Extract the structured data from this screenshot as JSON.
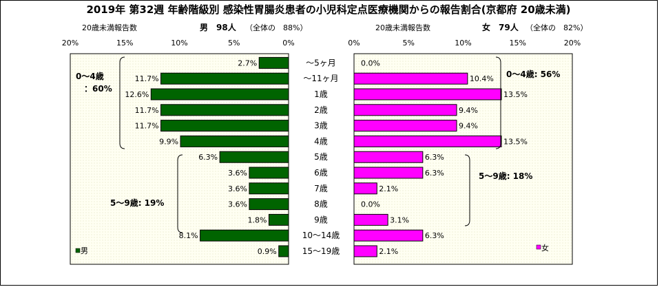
{
  "chart_data": {
    "type": "bar",
    "title": "2019年 第32週 年齢階級別 感染性胃腸炎患者の小児科定点医療機関からの報告割合(京都府 20歳未満)",
    "categories": [
      "～5ヶ月",
      "～11ヶ月",
      "1歳",
      "2歳",
      "3歳",
      "4歳",
      "5歳",
      "6歳",
      "7歳",
      "8歳",
      "9歳",
      "10～14歳",
      "15～19歳"
    ],
    "xlim": [
      0,
      20
    ],
    "ticks": [
      "20%",
      "15%",
      "10%",
      "5%",
      "0%"
    ],
    "ticks_right": [
      "0%",
      "5%",
      "10%",
      "15%",
      "20%"
    ],
    "left_panel": {
      "header_label": "20歳未満報告数",
      "header_count": "男　98人",
      "header_share": "（全体の　88%）",
      "legend": "男",
      "color": "#006400",
      "values": [
        2.7,
        11.7,
        12.6,
        11.7,
        11.7,
        9.9,
        6.3,
        3.6,
        3.6,
        3.6,
        1.8,
        8.1,
        0.9
      ],
      "labels": [
        "2.7%",
        "11.7%",
        "12.6%",
        "11.7%",
        "11.7%",
        "9.9%",
        "6.3%",
        "3.6%",
        "3.6%",
        "3.6%",
        "1.8%",
        "8.1%",
        "0.9%"
      ],
      "group_a_line1": "0～4歳",
      "group_a_line2": "：60%",
      "group_b": "5～9歳: 19%"
    },
    "right_panel": {
      "header_label": "20歳未満報告数",
      "header_count": "女　79人",
      "header_share": "（全体の　82%）",
      "legend": "女",
      "color": "#ff00ff",
      "values": [
        0.0,
        10.4,
        13.5,
        9.4,
        9.4,
        13.5,
        6.3,
        6.3,
        2.1,
        0.0,
        3.1,
        6.3,
        2.1
      ],
      "labels": [
        "0.0%",
        "10.4%",
        "13.5%",
        "9.4%",
        "9.4%",
        "13.5%",
        "6.3%",
        "6.3%",
        "2.1%",
        "0.0%",
        "3.1%",
        "6.3%",
        "2.1%"
      ],
      "group_a": "0～4歳: 56%",
      "group_b": "5～9歳: 18%"
    }
  }
}
